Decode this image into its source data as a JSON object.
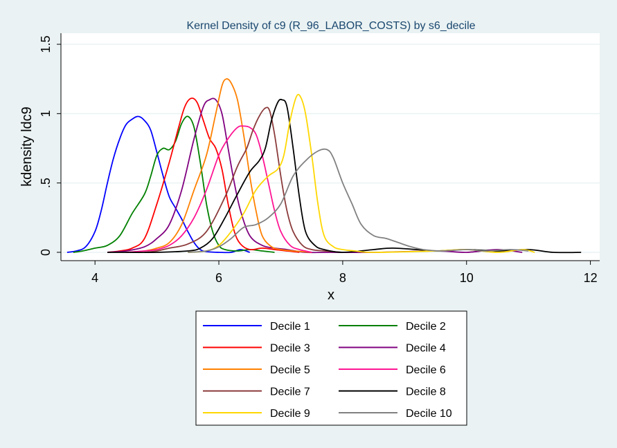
{
  "chart_data": {
    "type": "line",
    "title": "Kernel Density of c9 (R_96_LABOR_COSTS) by s6_decile",
    "xlabel": "x",
    "ylabel": "kdensity ldc9",
    "xlim": [
      3.45,
      12.15
    ],
    "ylim": [
      -0.06,
      1.58
    ],
    "xticks": [
      4,
      6,
      8,
      10,
      12
    ],
    "xtick_labels": [
      "4",
      "6",
      "8",
      "10",
      "12"
    ],
    "yticks": [
      0,
      0.5,
      1,
      1.5
    ],
    "ytick_labels": [
      "0",
      ".5",
      "1",
      "1.5"
    ],
    "grid": true,
    "legend_position": "bottom",
    "series": [
      {
        "name": "Decile 1",
        "color": "#0000ff",
        "points": [
          [
            3.55,
            0.0
          ],
          [
            3.7,
            0.01
          ],
          [
            3.85,
            0.04
          ],
          [
            4.0,
            0.15
          ],
          [
            4.1,
            0.3
          ],
          [
            4.2,
            0.5
          ],
          [
            4.3,
            0.68
          ],
          [
            4.4,
            0.82
          ],
          [
            4.5,
            0.92
          ],
          [
            4.6,
            0.96
          ],
          [
            4.7,
            0.98
          ],
          [
            4.8,
            0.95
          ],
          [
            4.9,
            0.88
          ],
          [
            5.0,
            0.72
          ],
          [
            5.1,
            0.55
          ],
          [
            5.2,
            0.4
          ],
          [
            5.3,
            0.32
          ],
          [
            5.4,
            0.24
          ],
          [
            5.5,
            0.15
          ],
          [
            5.6,
            0.07
          ],
          [
            5.7,
            0.02
          ],
          [
            5.8,
            0.005
          ],
          [
            6.0,
            0.0
          ],
          [
            6.2,
            0.0
          ],
          [
            6.35,
            0.02
          ],
          [
            6.5,
            0.0
          ]
        ]
      },
      {
        "name": "Decile 2",
        "color": "#008000",
        "points": [
          [
            3.65,
            0.0
          ],
          [
            3.8,
            0.01
          ],
          [
            4.0,
            0.03
          ],
          [
            4.2,
            0.05
          ],
          [
            4.4,
            0.12
          ],
          [
            4.6,
            0.28
          ],
          [
            4.8,
            0.42
          ],
          [
            4.9,
            0.55
          ],
          [
            5.0,
            0.7
          ],
          [
            5.1,
            0.75
          ],
          [
            5.2,
            0.74
          ],
          [
            5.3,
            0.8
          ],
          [
            5.4,
            0.93
          ],
          [
            5.5,
            0.98
          ],
          [
            5.6,
            0.9
          ],
          [
            5.7,
            0.65
          ],
          [
            5.8,
            0.35
          ],
          [
            5.9,
            0.15
          ],
          [
            6.0,
            0.05
          ],
          [
            6.1,
            0.02
          ],
          [
            6.3,
            0.01
          ],
          [
            6.5,
            0.02
          ],
          [
            6.7,
            0.01
          ],
          [
            6.9,
            0.0
          ]
        ]
      },
      {
        "name": "Decile 3",
        "color": "#ff0000",
        "points": [
          [
            4.2,
            0.0
          ],
          [
            4.4,
            0.01
          ],
          [
            4.6,
            0.03
          ],
          [
            4.8,
            0.1
          ],
          [
            5.0,
            0.35
          ],
          [
            5.2,
            0.65
          ],
          [
            5.35,
            0.9
          ],
          [
            5.45,
            1.05
          ],
          [
            5.55,
            1.11
          ],
          [
            5.65,
            1.08
          ],
          [
            5.75,
            0.95
          ],
          [
            5.85,
            0.82
          ],
          [
            5.95,
            0.75
          ],
          [
            6.05,
            0.6
          ],
          [
            6.15,
            0.35
          ],
          [
            6.25,
            0.15
          ],
          [
            6.35,
            0.06
          ],
          [
            6.5,
            0.02
          ],
          [
            6.7,
            0.03
          ],
          [
            6.9,
            0.02
          ],
          [
            7.1,
            0.01
          ],
          [
            7.3,
            0.0
          ]
        ]
      },
      {
        "name": "Decile 4",
        "color": "#800080",
        "points": [
          [
            4.2,
            0.0
          ],
          [
            4.5,
            0.01
          ],
          [
            4.8,
            0.04
          ],
          [
            5.0,
            0.1
          ],
          [
            5.2,
            0.2
          ],
          [
            5.4,
            0.45
          ],
          [
            5.6,
            0.82
          ],
          [
            5.75,
            1.05
          ],
          [
            5.85,
            1.1
          ],
          [
            5.95,
            1.1
          ],
          [
            6.05,
            1.0
          ],
          [
            6.15,
            0.75
          ],
          [
            6.25,
            0.5
          ],
          [
            6.35,
            0.3
          ],
          [
            6.5,
            0.12
          ],
          [
            6.7,
            0.05
          ],
          [
            6.9,
            0.03
          ],
          [
            7.1,
            0.02
          ],
          [
            7.4,
            0.0
          ],
          [
            7.8,
            0.0
          ],
          [
            8.5,
            0.0
          ],
          [
            9.5,
            0.01
          ],
          [
            10.0,
            0.0
          ],
          [
            10.5,
            0.02
          ],
          [
            10.9,
            0.0
          ]
        ]
      },
      {
        "name": "Decile 5",
        "color": "#ff8000",
        "points": [
          [
            4.5,
            0.0
          ],
          [
            4.8,
            0.01
          ],
          [
            5.0,
            0.03
          ],
          [
            5.2,
            0.07
          ],
          [
            5.4,
            0.2
          ],
          [
            5.6,
            0.45
          ],
          [
            5.8,
            0.7
          ],
          [
            5.95,
            1.0
          ],
          [
            6.05,
            1.2
          ],
          [
            6.12,
            1.25
          ],
          [
            6.2,
            1.22
          ],
          [
            6.3,
            1.1
          ],
          [
            6.4,
            0.85
          ],
          [
            6.5,
            0.55
          ],
          [
            6.6,
            0.3
          ],
          [
            6.7,
            0.12
          ],
          [
            6.85,
            0.04
          ],
          [
            7.0,
            0.02
          ],
          [
            7.2,
            0.01
          ],
          [
            7.5,
            0.0
          ]
        ]
      },
      {
        "name": "Decile 6",
        "color": "#ff1493",
        "points": [
          [
            4.5,
            0.0
          ],
          [
            4.8,
            0.01
          ],
          [
            5.0,
            0.02
          ],
          [
            5.2,
            0.05
          ],
          [
            5.4,
            0.12
          ],
          [
            5.6,
            0.25
          ],
          [
            5.8,
            0.45
          ],
          [
            6.0,
            0.7
          ],
          [
            6.15,
            0.82
          ],
          [
            6.3,
            0.9
          ],
          [
            6.4,
            0.91
          ],
          [
            6.5,
            0.9
          ],
          [
            6.6,
            0.85
          ],
          [
            6.7,
            0.7
          ],
          [
            6.8,
            0.5
          ],
          [
            6.9,
            0.3
          ],
          [
            7.0,
            0.15
          ],
          [
            7.15,
            0.05
          ],
          [
            7.3,
            0.02
          ],
          [
            7.5,
            0.0
          ]
        ]
      },
      {
        "name": "Decile 7",
        "color": "#8b3a3a",
        "points": [
          [
            4.8,
            0.0
          ],
          [
            5.0,
            0.01
          ],
          [
            5.2,
            0.03
          ],
          [
            5.5,
            0.06
          ],
          [
            5.8,
            0.15
          ],
          [
            6.1,
            0.4
          ],
          [
            6.3,
            0.62
          ],
          [
            6.45,
            0.75
          ],
          [
            6.55,
            0.88
          ],
          [
            6.65,
            0.98
          ],
          [
            6.75,
            1.04
          ],
          [
            6.82,
            1.02
          ],
          [
            6.9,
            0.85
          ],
          [
            7.0,
            0.55
          ],
          [
            7.1,
            0.3
          ],
          [
            7.2,
            0.15
          ],
          [
            7.35,
            0.05
          ],
          [
            7.5,
            0.02
          ],
          [
            7.7,
            0.01
          ],
          [
            8.0,
            0.0
          ]
        ]
      },
      {
        "name": "Decile 8",
        "color": "#000000",
        "points": [
          [
            4.2,
            0.0
          ],
          [
            4.5,
            0.0
          ],
          [
            5.0,
            0.0
          ],
          [
            5.5,
            0.01
          ],
          [
            5.7,
            0.03
          ],
          [
            5.9,
            0.1
          ],
          [
            6.1,
            0.25
          ],
          [
            6.3,
            0.42
          ],
          [
            6.5,
            0.58
          ],
          [
            6.65,
            0.66
          ],
          [
            6.75,
            0.75
          ],
          [
            6.85,
            0.95
          ],
          [
            6.95,
            1.08
          ],
          [
            7.02,
            1.1
          ],
          [
            7.1,
            1.05
          ],
          [
            7.2,
            0.75
          ],
          [
            7.3,
            0.4
          ],
          [
            7.4,
            0.15
          ],
          [
            7.55,
            0.05
          ],
          [
            7.7,
            0.02
          ],
          [
            8.0,
            0.0
          ],
          [
            8.5,
            0.02
          ],
          [
            8.8,
            0.03
          ],
          [
            9.2,
            0.02
          ],
          [
            9.5,
            0.01
          ],
          [
            10.0,
            0.02
          ],
          [
            10.5,
            0.01
          ],
          [
            11.0,
            0.02
          ],
          [
            11.4,
            0.0
          ],
          [
            11.85,
            0.0
          ]
        ]
      },
      {
        "name": "Decile 9",
        "color": "#ffd700",
        "points": [
          [
            5.5,
            0.0
          ],
          [
            5.8,
            0.01
          ],
          [
            6.0,
            0.05
          ],
          [
            6.2,
            0.15
          ],
          [
            6.4,
            0.28
          ],
          [
            6.6,
            0.45
          ],
          [
            6.8,
            0.55
          ],
          [
            6.95,
            0.6
          ],
          [
            7.05,
            0.7
          ],
          [
            7.15,
            0.95
          ],
          [
            7.25,
            1.12
          ],
          [
            7.32,
            1.12
          ],
          [
            7.4,
            1.0
          ],
          [
            7.5,
            0.7
          ],
          [
            7.6,
            0.35
          ],
          [
            7.7,
            0.12
          ],
          [
            7.85,
            0.04
          ],
          [
            8.0,
            0.02
          ],
          [
            8.2,
            0.01
          ],
          [
            8.5,
            0.0
          ],
          [
            9.5,
            0.01
          ],
          [
            10.0,
            0.02
          ],
          [
            10.5,
            0.0
          ],
          [
            10.9,
            0.02
          ],
          [
            11.1,
            0.0
          ]
        ]
      },
      {
        "name": "Decile 10",
        "color": "#808080",
        "points": [
          [
            5.5,
            0.0
          ],
          [
            5.8,
            0.01
          ],
          [
            6.0,
            0.04
          ],
          [
            6.2,
            0.1
          ],
          [
            6.4,
            0.18
          ],
          [
            6.6,
            0.2
          ],
          [
            6.8,
            0.25
          ],
          [
            7.0,
            0.35
          ],
          [
            7.2,
            0.55
          ],
          [
            7.4,
            0.66
          ],
          [
            7.6,
            0.73
          ],
          [
            7.75,
            0.74
          ],
          [
            7.85,
            0.68
          ],
          [
            8.0,
            0.5
          ],
          [
            8.15,
            0.35
          ],
          [
            8.3,
            0.2
          ],
          [
            8.5,
            0.12
          ],
          [
            8.7,
            0.1
          ],
          [
            8.9,
            0.07
          ],
          [
            9.1,
            0.04
          ],
          [
            9.3,
            0.02
          ],
          [
            9.6,
            0.01
          ],
          [
            10.0,
            0.02
          ],
          [
            10.3,
            0.01
          ],
          [
            10.7,
            0.02
          ],
          [
            11.0,
            0.01
          ]
        ]
      }
    ]
  }
}
